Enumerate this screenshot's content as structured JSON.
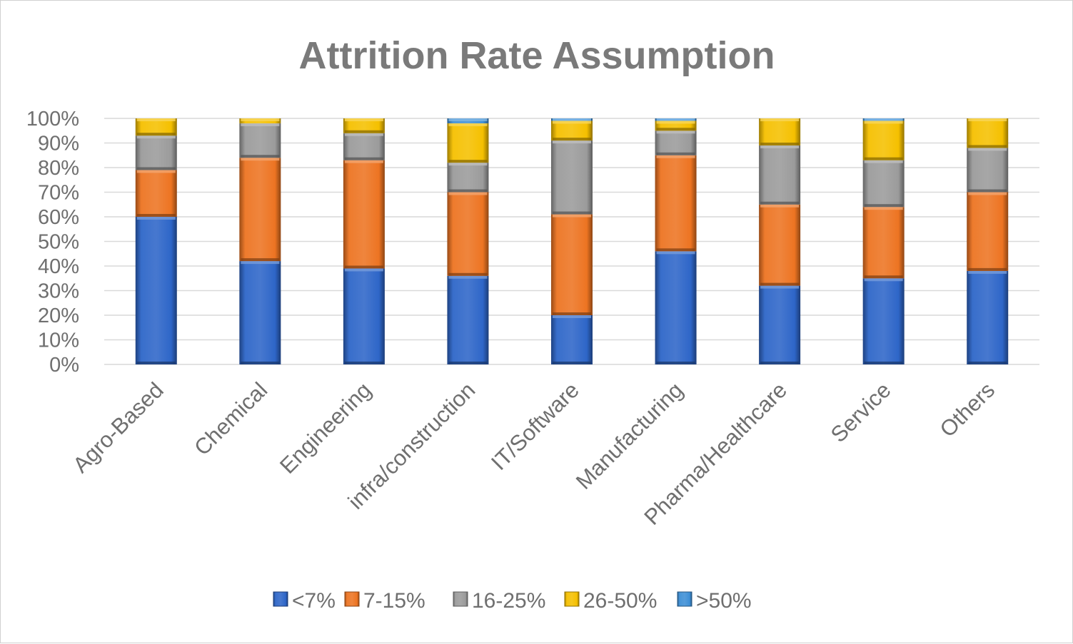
{
  "chart_data": {
    "type": "bar",
    "stacked": true,
    "title": "Attrition Rate Assumption",
    "xlabel": "",
    "ylabel": "",
    "ylim": [
      0,
      100
    ],
    "y_ticks": [
      "0%",
      "10%",
      "20%",
      "30%",
      "40%",
      "50%",
      "60%",
      "70%",
      "80%",
      "90%",
      "100%"
    ],
    "grid": true,
    "legend_position": "bottom",
    "categories": [
      "Agro-Based",
      "Chemical",
      "Engineering",
      "infra/construction",
      "IT/Software",
      "Manufacturing",
      "Pharma/Healthcare",
      "Service",
      "Others"
    ],
    "series": [
      {
        "name": "<7%",
        "color": "#2e66c8",
        "values": [
          60,
          42,
          39,
          36,
          20,
          46,
          32,
          35,
          38
        ]
      },
      {
        "name": "7-15%",
        "color": "#ed7422",
        "values": [
          19,
          42,
          44,
          34,
          41,
          39,
          33,
          29,
          32
        ]
      },
      {
        "name": "16-25%",
        "color": "#9b9b9b",
        "values": [
          14,
          14,
          11,
          12,
          30,
          10,
          24,
          19,
          18
        ]
      },
      {
        "name": "26-50%",
        "color": "#f5c000",
        "values": [
          7,
          2,
          6,
          16,
          8,
          4,
          11,
          16,
          12
        ]
      },
      {
        "name": ">50%",
        "color": "#3d8fd6",
        "values": [
          0,
          0,
          0,
          2,
          1,
          1,
          0,
          1,
          0
        ]
      }
    ]
  }
}
